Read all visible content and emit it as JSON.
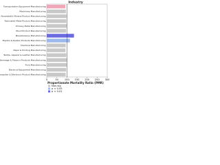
{
  "chart_data": {
    "type": "bar",
    "orientation": "horizontal",
    "title": "Industry",
    "x_label": "Proportionate Mortality Ratio (PMR)",
    "categories": [
      "Transportation Equipment Manufacturing",
      "Machinery Manufacturing",
      "Misc. Nonmetallic Mineral Product Manufacturing",
      "Fabricated Metal Product Manufacturing",
      "Primary Metal Manufacturing",
      "Wood Product Manufacturing",
      "Miscellaneous Manufacturing",
      "Plastics & Rubber Products Manufacturing",
      "Chemical Manufacturing",
      "Paper & Printing Manufacturing",
      "Textile, Apparel & Leather Manufacturing",
      "Beverage & Tobacco Products Manufacturing",
      "Food Manufacturing",
      "Electrical Equipment Manufacturing",
      "Computer & Electronic Product Manufacturing"
    ],
    "values": [
      92,
      95,
      98,
      97,
      100,
      96,
      135,
      115,
      94,
      93,
      97,
      101,
      99,
      96,
      94
    ],
    "colors": [
      "#f0a8b8",
      "#c8c8c8",
      "#c8c8c8",
      "#c8c8c8",
      "#c8c8c8",
      "#c8c8c8",
      "#6a6ae0",
      "#9db8ea",
      "#c8c8c8",
      "#c8c8c8",
      "#c8c8c8",
      "#c8c8c8",
      "#c8c8c8",
      "#c8c8c8",
      "#c8c8c8"
    ],
    "legend": [
      {
        "name": "Non-sig",
        "color": "#c8c8c8"
      },
      {
        "name": "p < 0.05",
        "color": "#9db8ea"
      },
      {
        "name": "p < 0.01",
        "color": "#6a6ae0"
      }
    ],
    "xlim": [
      0,
      300
    ],
    "xticks": [
      0,
      50,
      100,
      150,
      200,
      250,
      300
    ],
    "reference": 100
  }
}
